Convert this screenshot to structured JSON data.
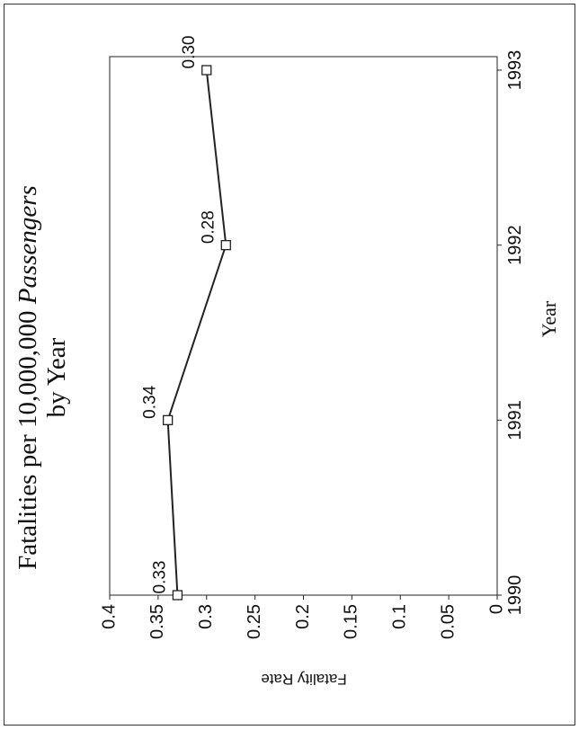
{
  "chart_data": {
    "type": "line",
    "title": "Fatalities per 10,000,000 ",
    "title_emphasis": "Passengers",
    "subtitle": "by Year",
    "x_label": "Year",
    "y_label": "Fatality Rate",
    "x": [
      1990,
      1991,
      1992,
      1993
    ],
    "series": [
      {
        "color": "#222222",
        "values": [
          0.33,
          0.34,
          0.28,
          0.3
        ],
        "value_labels": [
          "0.33",
          "0.34",
          "0.28",
          "0.30"
        ]
      }
    ],
    "xlim": [
      1990,
      1993
    ],
    "xticks": [
      1990,
      1991,
      1992,
      1993
    ],
    "ylim": [
      0,
      0.4
    ],
    "yticks": [
      0,
      0.05,
      0.1,
      0.15,
      0.2,
      0.25,
      0.3,
      0.35,
      0.4
    ],
    "grid": false
  }
}
